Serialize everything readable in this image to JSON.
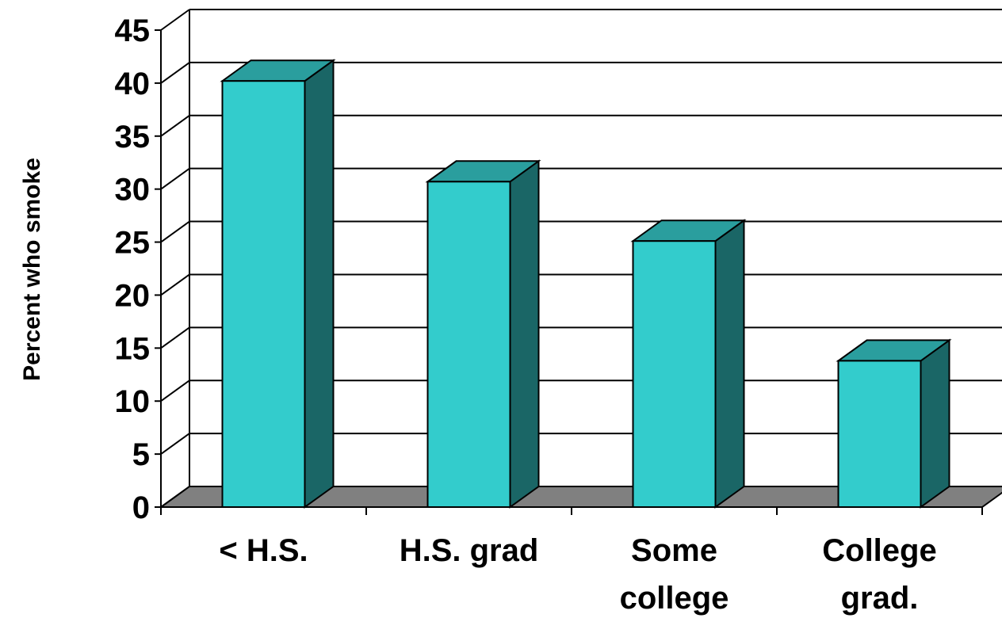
{
  "chart_data": {
    "type": "bar",
    "title": "",
    "xlabel": "",
    "ylabel": "Percent who smoke",
    "categories": [
      [
        "< H.S."
      ],
      [
        "H.S. grad"
      ],
      [
        "Some",
        "college"
      ],
      [
        "College",
        "grad."
      ]
    ],
    "values": [
      40.2,
      30.7,
      25.1,
      13.8
    ],
    "ylim": [
      0,
      45
    ],
    "yticks": [
      0,
      5,
      10,
      15,
      20,
      25,
      30,
      35,
      40,
      45
    ],
    "grid": true,
    "three_d": true,
    "colors": {
      "bar_front": "#33cccc",
      "bar_top": "#2a9e9e",
      "bar_side": "#1a6666",
      "floor": "#808080",
      "grid": "#000000"
    }
  }
}
